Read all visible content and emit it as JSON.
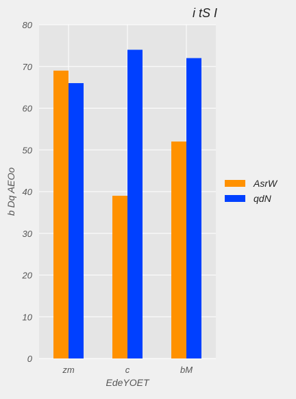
{
  "chart_data": {
    "type": "bar",
    "title": "i tS I",
    "xlabel": "EdeYOET",
    "ylabel": "b Dq AEOo",
    "categories": [
      "zm",
      "c",
      "bM"
    ],
    "series": [
      {
        "name": "AsrW",
        "values": [
          69,
          39,
          52
        ],
        "color": "#ff9100"
      },
      {
        "name": "qdN",
        "values": [
          66,
          74,
          72
        ],
        "color": "#0040ff"
      }
    ],
    "ylim": [
      0,
      80
    ],
    "yticks": [
      0,
      10,
      20,
      30,
      40,
      50,
      60,
      70,
      80
    ],
    "grid": true,
    "legend_position": "right",
    "plot_background": "#e5e5e5",
    "grid_color": "#ffffff"
  }
}
